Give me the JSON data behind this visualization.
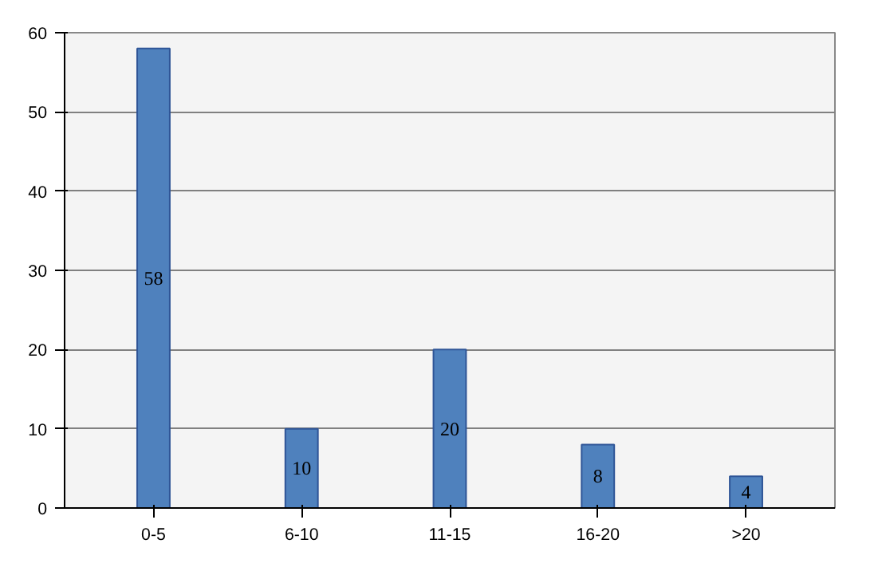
{
  "chart_data": {
    "type": "bar",
    "categories": [
      "0-5",
      "6-10",
      "11-15",
      "16-20",
      ">20"
    ],
    "values": [
      58,
      10,
      20,
      8,
      4
    ],
    "color": "#4f81bd",
    "ylim": [
      0,
      60
    ],
    "yticks": [
      0,
      10,
      20,
      30,
      40,
      50,
      60
    ],
    "grid": "y",
    "data_labels": true
  }
}
